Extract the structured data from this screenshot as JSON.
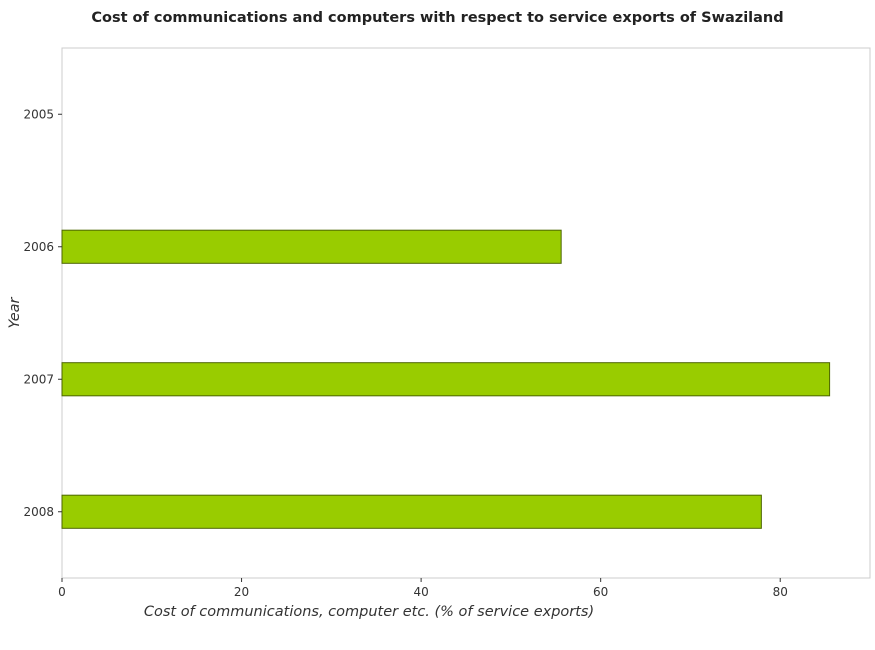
{
  "chart_data": {
    "type": "bar",
    "orientation": "horizontal",
    "title": "Cost of communications and computers with respect to service exports of Swaziland",
    "xlabel": "Cost of communications, computer etc. (% of service exports)",
    "ylabel": "Year",
    "categories": [
      "2005",
      "2006",
      "2007",
      "2008"
    ],
    "values": [
      0,
      55.6,
      85.5,
      77.9
    ],
    "xlim": [
      0,
      90
    ],
    "xticks": [
      0,
      20,
      40,
      60,
      80
    ],
    "grid": false,
    "legend": "none",
    "bar_color": "#99cc00",
    "bar_edge_color": "#4d6600"
  }
}
